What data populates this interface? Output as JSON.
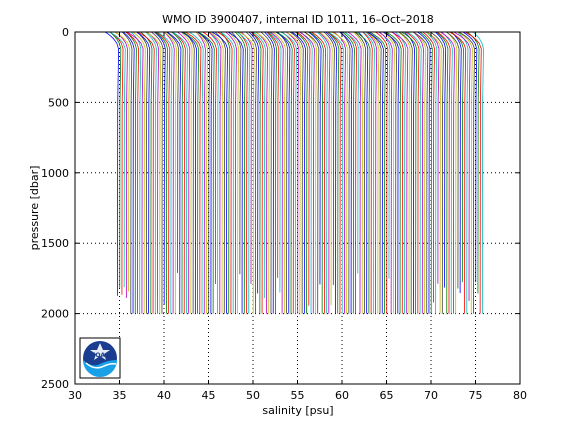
{
  "chart_data": {
    "type": "line",
    "title": "WMO ID 3900407, internal ID 1011, 16–Oct–2018",
    "xlabel": "salinity [psu]",
    "ylabel": "pressure [dbar]",
    "xlim": [
      30,
      80
    ],
    "ylim": [
      2500,
      0
    ],
    "y_reversed": true,
    "x_ticks": [
      "30",
      "35",
      "40",
      "45",
      "50",
      "55",
      "60",
      "65",
      "70",
      "75",
      "80"
    ],
    "y_ticks": [
      "0",
      "500",
      "1000",
      "1500",
      "2000",
      "2500"
    ],
    "grid": "dotted",
    "description_offset_per_profile_psu": 0.25,
    "profile_count": 165,
    "profile_first_deep_salinity": 34.75,
    "profile_last_deep_salinity": 75.75,
    "profile_max_pressure": 2000,
    "profile_colors": [
      "#0000ff",
      "#008000",
      "#ff0000",
      "#00bfbf",
      "#bf00bf",
      "#bfbf00",
      "#404040"
    ],
    "logo_icon": "noaa-logo-icon",
    "logo_text": "NOAA"
  }
}
